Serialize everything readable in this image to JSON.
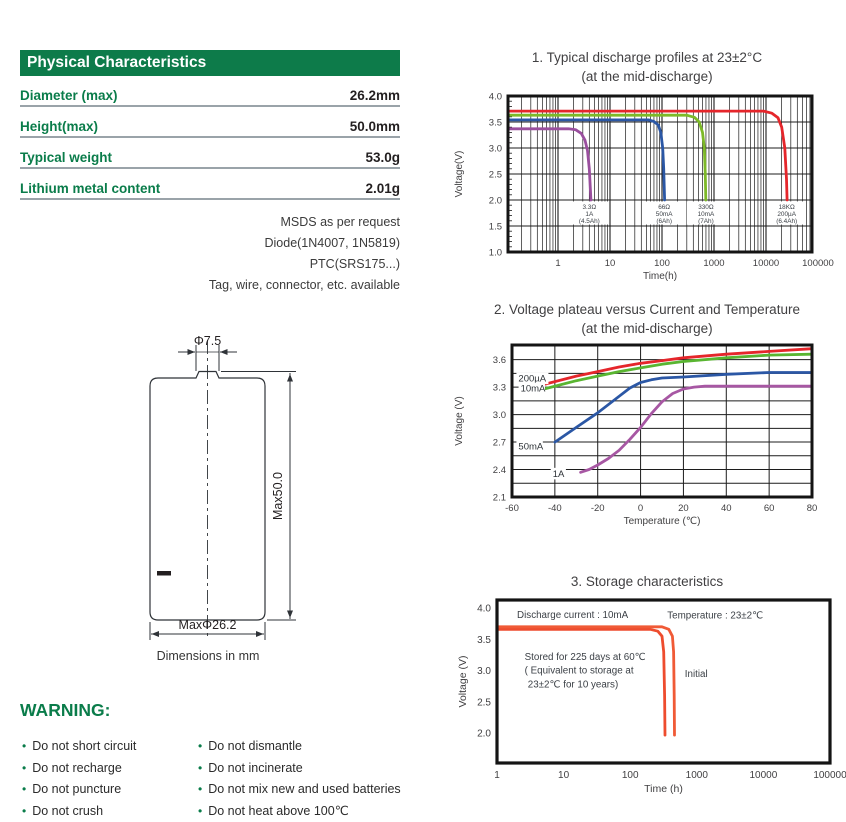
{
  "brand": {
    "green": "#0a7c4a",
    "header_green": "#0d7b4a",
    "dark_text": "#231f20",
    "rule_gray": "#9aa3a9",
    "chart_text": "#414042"
  },
  "physical_characteristics": {
    "header": "Physical Characteristics",
    "rows": [
      {
        "label": "Diameter (max)",
        "value": "26.2mm"
      },
      {
        "label": "Height(max)",
        "value": "50.0mm"
      },
      {
        "label": "Typical weight",
        "value": "53.0g"
      },
      {
        "label": "Lithium metal content",
        "value": "2.01g"
      }
    ]
  },
  "options_text": [
    "MSDS as per request",
    "Diode(1N4007, 1N5819)",
    "PTC(SRS175...)",
    "Tag, wire, connector, etc. available"
  ],
  "drawing": {
    "top_diameter": "Φ7.5",
    "height": "Max50.0",
    "diameter": "MaxΦ26.2",
    "caption": "Dimensions in mm"
  },
  "warning": {
    "title": "WARNING:",
    "columns": [
      [
        "Do not short circuit",
        "Do not recharge",
        "Do not puncture",
        "Do not crush"
      ],
      [
        "Do not dismantle",
        "Do not incinerate",
        "Do not mix new and used batteries",
        "Do not heat above 100℃"
      ]
    ]
  },
  "chart_data": [
    {
      "id": "discharge-profiles",
      "type": "line",
      "title": "1. Typical discharge profiles at 23±2°C",
      "subtitle": "(at  the mid-discharge)",
      "xlabel": "Time(h)",
      "ylabel": "Voltage(V)",
      "x_scale": "log",
      "x_range": [
        0.11,
        76000
      ],
      "x_ticks": [
        1,
        10,
        100,
        1000,
        10000,
        100000
      ],
      "ylim": [
        1.0,
        4.0
      ],
      "y_ticks": [
        1.0,
        1.5,
        2.0,
        2.5,
        3.0,
        3.5,
        4.0
      ],
      "grid": true,
      "series": [
        {
          "name": "200µA (18KΩ)",
          "color": "#e5262b",
          "points": [
            [
              0.11,
              3.71
            ],
            [
              9000,
              3.71
            ],
            [
              13000,
              3.67
            ],
            [
              17000,
              3.58
            ],
            [
              20000,
              3.4
            ],
            [
              23000,
              3.0
            ],
            [
              24800,
              2.4
            ],
            [
              25400,
              2.0
            ]
          ]
        },
        {
          "name": "10mA (330Ω)",
          "color": "#7db928",
          "points": [
            [
              0.11,
              3.63
            ],
            [
              300,
              3.63
            ],
            [
              420,
              3.59
            ],
            [
              520,
              3.5
            ],
            [
              600,
              3.3
            ],
            [
              650,
              3.0
            ],
            [
              680,
              2.5
            ],
            [
              695,
              2.0
            ]
          ]
        },
        {
          "name": "50mA (66Ω)",
          "color": "#2b57a5",
          "points": [
            [
              0.11,
              3.54
            ],
            [
              55,
              3.54
            ],
            [
              70,
              3.51
            ],
            [
              85,
              3.44
            ],
            [
              95,
              3.3
            ],
            [
              103,
              3.0
            ],
            [
              108,
              2.6
            ],
            [
              112,
              2.0
            ]
          ]
        },
        {
          "name": "1A (3.3Ω)",
          "color": "#9a4f9e",
          "points": [
            [
              0.11,
              3.37
            ],
            [
              1.6,
              3.37
            ],
            [
              2.2,
              3.35
            ],
            [
              2.8,
              3.28
            ],
            [
              3.3,
              3.15
            ],
            [
              3.7,
              2.95
            ],
            [
              4.0,
              2.6
            ],
            [
              4.2,
              2.2
            ],
            [
              4.3,
              2.0
            ]
          ]
        }
      ],
      "annotations": [
        {
          "x": 4,
          "lines": [
            "3.3Ω",
            "1A",
            "(4.5Ah)"
          ]
        },
        {
          "x": 110,
          "lines": [
            "66Ω",
            "50mA",
            "(6Ah)"
          ]
        },
        {
          "x": 700,
          "lines": [
            "330Ω",
            "10mA",
            "(7Ah)"
          ]
        },
        {
          "x": 25000,
          "lines": [
            "18KΩ",
            "200µA",
            "(6.4Ah)"
          ]
        }
      ]
    },
    {
      "id": "voltage-plateau",
      "type": "line",
      "title": "2. Voltage plateau versus Current and Temperature",
      "subtitle": "(at the mid-discharge)",
      "xlabel": "Temperature (℃)",
      "ylabel": "Voltage (V)",
      "xlim": [
        -60,
        80
      ],
      "x_ticks": [
        -60,
        -40,
        -20,
        0,
        20,
        40,
        60,
        80
      ],
      "ylim": [
        2.1,
        3.76
      ],
      "y_ticks": [
        2.1,
        2.4,
        2.7,
        3.0,
        3.3,
        3.6
      ],
      "y_grid_step": 0.15,
      "grid": true,
      "series": [
        {
          "name": "200µA",
          "color": "#e5262b",
          "label_at": [
            -57,
            3.36
          ],
          "points": [
            [
              -45,
              3.33
            ],
            [
              -30,
              3.42
            ],
            [
              -20,
              3.47
            ],
            [
              -10,
              3.52
            ],
            [
              0,
              3.56
            ],
            [
              10,
              3.59
            ],
            [
              20,
              3.62
            ],
            [
              40,
              3.66
            ],
            [
              60,
              3.69
            ],
            [
              80,
              3.72
            ]
          ]
        },
        {
          "name": "10mA",
          "color": "#59b531",
          "label_at": [
            -56,
            3.25
          ],
          "points": [
            [
              -45,
              3.28
            ],
            [
              -30,
              3.37
            ],
            [
              -20,
              3.42
            ],
            [
              -10,
              3.47
            ],
            [
              0,
              3.51
            ],
            [
              10,
              3.55
            ],
            [
              20,
              3.58
            ],
            [
              40,
              3.62
            ],
            [
              60,
              3.65
            ],
            [
              80,
              3.66
            ]
          ]
        },
        {
          "name": "50mA",
          "color": "#2b57a5",
          "label_at": [
            -57,
            2.62
          ],
          "points": [
            [
              -40,
              2.7
            ],
            [
              -30,
              2.86
            ],
            [
              -20,
              3.02
            ],
            [
              -10,
              3.2
            ],
            [
              -5,
              3.29
            ],
            [
              0,
              3.35
            ],
            [
              5,
              3.38
            ],
            [
              10,
              3.4
            ],
            [
              20,
              3.41
            ],
            [
              40,
              3.44
            ],
            [
              60,
              3.46
            ],
            [
              80,
              3.46
            ]
          ]
        },
        {
          "name": "1A",
          "color": "#a757a3",
          "label_at": [
            -41,
            2.32
          ],
          "points": [
            [
              -28,
              2.37
            ],
            [
              -24,
              2.4
            ],
            [
              -20,
              2.45
            ],
            [
              -15,
              2.52
            ],
            [
              -10,
              2.61
            ],
            [
              -5,
              2.73
            ],
            [
              0,
              2.86
            ],
            [
              5,
              3.01
            ],
            [
              10,
              3.14
            ],
            [
              15,
              3.23
            ],
            [
              20,
              3.28
            ],
            [
              25,
              3.3
            ],
            [
              30,
              3.31
            ],
            [
              50,
              3.31
            ],
            [
              80,
              3.31
            ]
          ]
        }
      ]
    },
    {
      "id": "storage-characteristics",
      "type": "line",
      "title": "3. Storage characteristics",
      "xlabel": "Time (h)",
      "ylabel": "Voltage (V)",
      "x_scale": "log",
      "x_range": [
        1,
        100000
      ],
      "x_ticks": [
        1,
        10,
        100,
        1000,
        10000,
        100000
      ],
      "ylim": [
        1.52,
        4.1
      ],
      "y_ticks": [
        2.0,
        2.5,
        3.0,
        3.5,
        4.0
      ],
      "grid": false,
      "series": [
        {
          "name": "Stored for 225 days at 60℃",
          "color": "#ee4c2e",
          "points": [
            [
              1,
              3.66
            ],
            [
              200,
              3.66
            ],
            [
              260,
              3.63
            ],
            [
              300,
              3.55
            ],
            [
              318,
              3.3
            ],
            [
              328,
              2.6
            ],
            [
              333,
              1.97
            ]
          ]
        },
        {
          "name": "Initial",
          "color": "#f05a36",
          "points": [
            [
              1,
              3.7
            ],
            [
              300,
              3.7
            ],
            [
              380,
              3.66
            ],
            [
              430,
              3.55
            ],
            [
              448,
              3.3
            ],
            [
              458,
              2.6
            ],
            [
              463,
              1.97
            ]
          ]
        }
      ],
      "texts": [
        {
          "t": 2,
          "v": 3.84,
          "text": "Discharge current : 10mA"
        },
        {
          "t": 360,
          "v": 3.83,
          "text": "Temperature : 23±2℃"
        },
        {
          "t": 2.6,
          "v": 3.17,
          "text": "Stored for 225 days at 60℃"
        },
        {
          "t": 2.6,
          "v": 2.95,
          "text": "( Equivalent to storage at"
        },
        {
          "t": 2.9,
          "v": 2.73,
          "text": "23±2℃ for 10 years)"
        },
        {
          "t": 660,
          "v": 2.9,
          "text": "Initial"
        }
      ]
    }
  ]
}
